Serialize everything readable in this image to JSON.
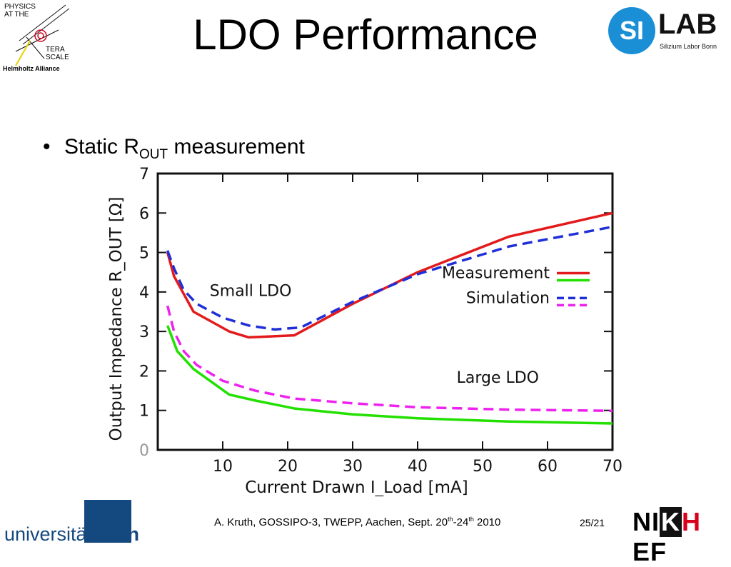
{
  "logos": {
    "terascale": [
      "PHYSICS",
      "AT THE",
      "TERA",
      "SCALE",
      "Helmholtz Alliance"
    ],
    "silab": {
      "badge": "SI",
      "name": "LAB",
      "subtitle": "Silizium Labor Bonn"
    },
    "uni": {
      "prefix": "universität",
      "bold": "bonn"
    },
    "nikhef": {
      "a": "NI",
      "k": "K",
      "h": "H",
      "b": "EF"
    }
  },
  "title": "LDO Performance",
  "bullet": {
    "symbol": "•",
    "text_before": "Static R",
    "subscript": "OUT",
    "text_after": " measurement"
  },
  "footer": {
    "text": "A. Kruth, GOSSIPO-3, TWEPP, Aachen, Sept. 20",
    "sup1": "th",
    "mid": "-24",
    "sup2": "th",
    "end": " 2010"
  },
  "page_number": "25/21",
  "chart_data": {
    "type": "line",
    "xlabel": "Current Drawn I_Load [mA]",
    "ylabel": "Output Impedance R_OUT [Ω]",
    "xlim": [
      0,
      70
    ],
    "ylim": [
      0,
      7
    ],
    "xticks": [
      10,
      20,
      30,
      40,
      50,
      60,
      70
    ],
    "yticks": [
      0,
      1,
      2,
      3,
      4,
      5,
      6,
      7
    ],
    "annotations": [
      "Small LDO",
      "Large LDO"
    ],
    "legend": {
      "placement": "right",
      "entries": [
        "Measurement",
        "Simulation"
      ]
    },
    "colors": {
      "small_measurement": "#e31a1c",
      "large_measurement": "#22e000",
      "small_simulation": "#1f2fd8",
      "large_simulation": "#ee22ee"
    },
    "series": [
      {
        "group": "Small LDO",
        "kind": "Measurement",
        "color": "#e31a1c",
        "dashed": false,
        "x": [
          1.5,
          2.5,
          5.5,
          11,
          14,
          21,
          30,
          40,
          54,
          70
        ],
        "y": [
          5.0,
          4.4,
          3.5,
          3.0,
          2.85,
          2.9,
          3.7,
          4.5,
          5.4,
          6.0
        ]
      },
      {
        "group": "Small LDO",
        "kind": "Simulation",
        "color": "#1f2fd8",
        "dashed": true,
        "x": [
          1.5,
          2.5,
          4,
          6,
          10,
          14,
          18,
          22,
          30,
          40,
          54,
          70
        ],
        "y": [
          5.05,
          4.6,
          4.05,
          3.7,
          3.35,
          3.15,
          3.05,
          3.1,
          3.75,
          4.45,
          5.15,
          5.65
        ]
      },
      {
        "group": "Large LDO",
        "kind": "Measurement",
        "color": "#22e000",
        "dashed": false,
        "x": [
          1.5,
          3,
          5.5,
          11,
          15,
          21,
          30,
          40,
          54,
          70
        ],
        "y": [
          3.15,
          2.5,
          2.05,
          1.4,
          1.25,
          1.05,
          0.9,
          0.8,
          0.72,
          0.67
        ]
      },
      {
        "group": "Large LDO",
        "kind": "Simulation",
        "color": "#ee22ee",
        "dashed": true,
        "x": [
          1.5,
          2.5,
          4,
          6,
          10,
          15,
          21,
          30,
          40,
          54,
          70
        ],
        "y": [
          3.65,
          3.0,
          2.5,
          2.15,
          1.75,
          1.5,
          1.3,
          1.18,
          1.08,
          1.02,
          0.99
        ]
      }
    ]
  }
}
